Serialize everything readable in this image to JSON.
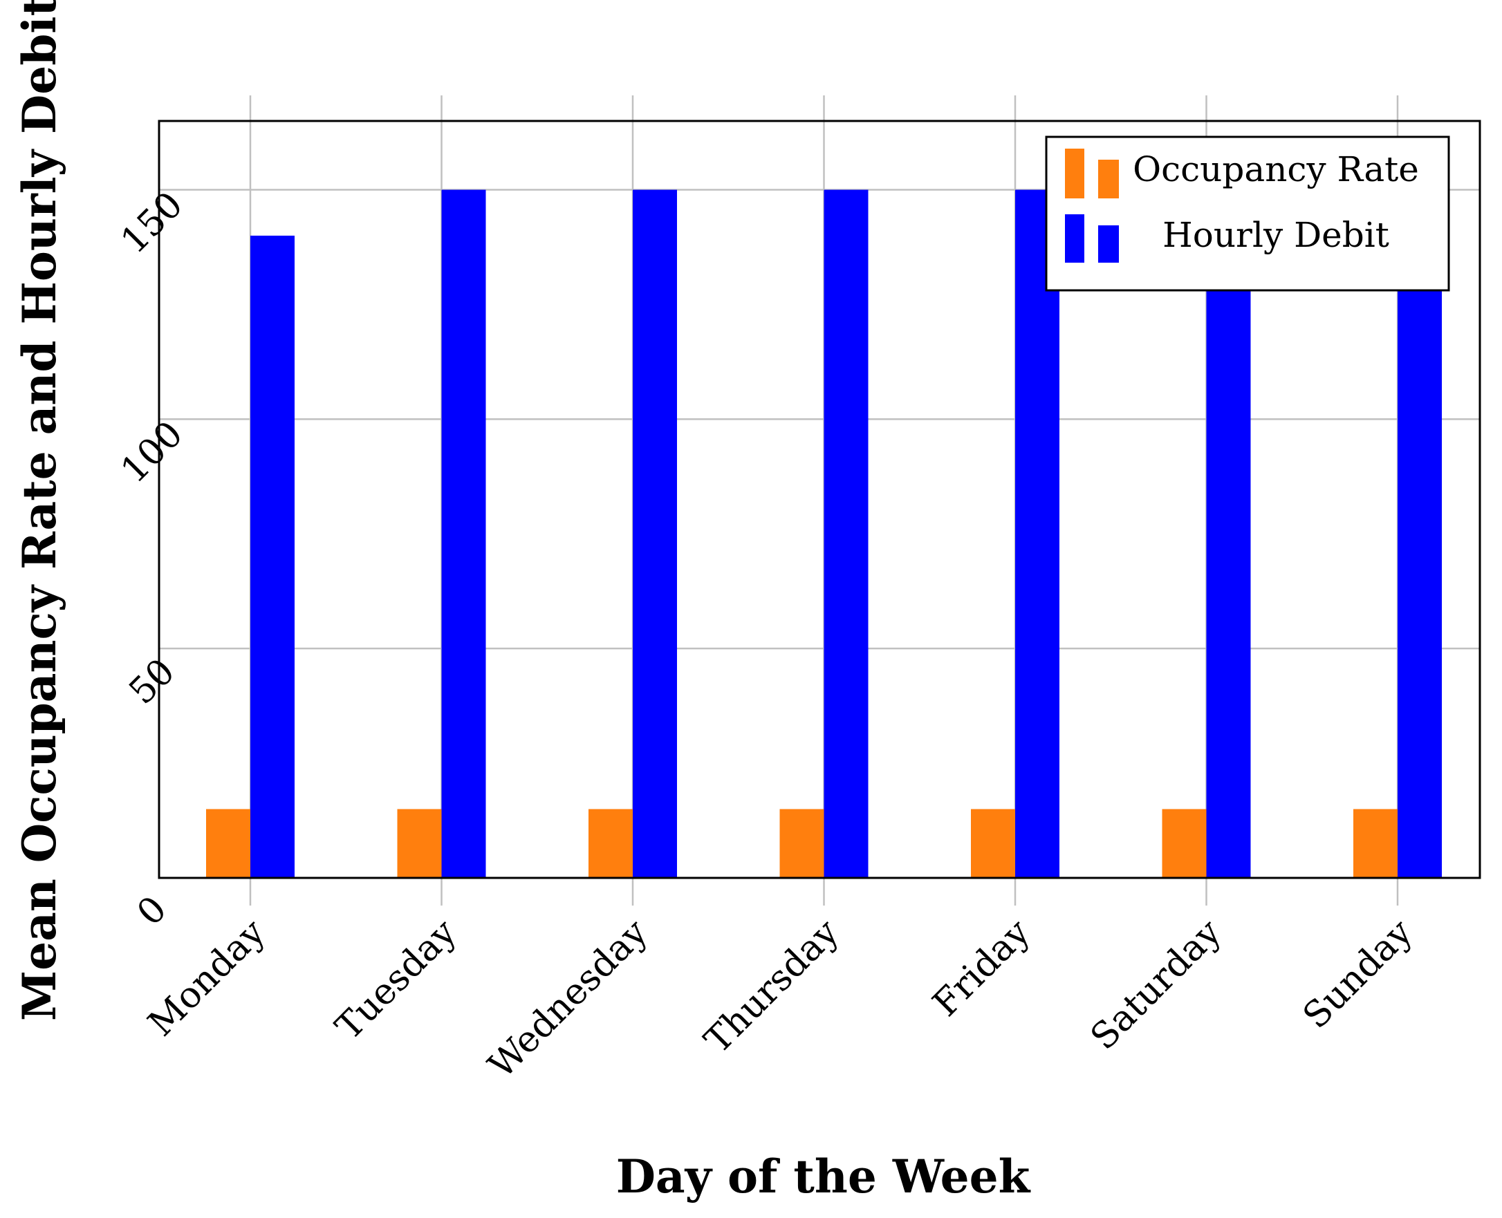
{
  "chart_data": {
    "type": "bar",
    "xlabel": "Day of the Week",
    "ylabel": "Mean Occupancy Rate and Hourly Debit",
    "categories": [
      "Monday",
      "Tuesday",
      "Wednesday",
      "Thursday",
      "Friday",
      "Saturday",
      "Sunday"
    ],
    "yticks": [
      0,
      50,
      100,
      150
    ],
    "ylim": [
      0,
      165
    ],
    "grid": true,
    "legend_position": "top-right",
    "series": [
      {
        "name": "Occupancy Rate",
        "color": "#ff7f0e",
        "values": [
          15,
          15,
          15,
          15,
          15,
          15,
          15
        ]
      },
      {
        "name": "Hourly Debit",
        "color": "#0000ff",
        "values": [
          140,
          150,
          150,
          150,
          150,
          150,
          150
        ]
      }
    ]
  }
}
